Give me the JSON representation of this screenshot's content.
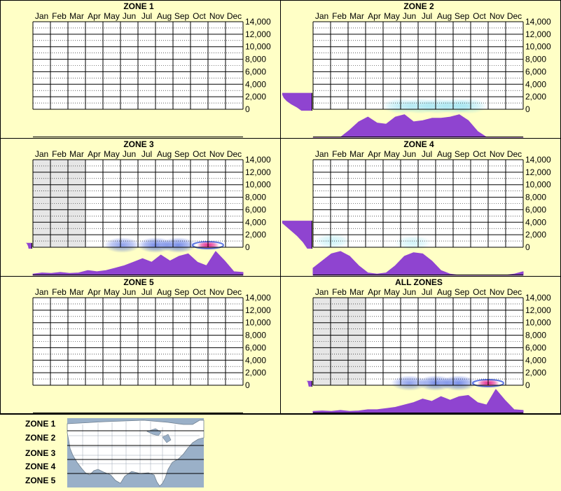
{
  "chart_data": [
    {
      "type": "heatmap",
      "title": "ZONE 1",
      "months": [
        "Jan",
        "Feb",
        "Mar",
        "Apr",
        "May",
        "Jun",
        "Jul",
        "Aug",
        "Sep",
        "Oct",
        "Nov",
        "Dec"
      ],
      "y_ticks": [
        "14,000",
        "12,000",
        "10,000",
        "8,000",
        "6,000",
        "4,000",
        "2,000",
        "0"
      ],
      "ylim": [
        0,
        14000
      ],
      "shaded_months": [],
      "elevation_hist": [],
      "month_profile": [],
      "heat": []
    },
    {
      "type": "heatmap",
      "title": "ZONE 2",
      "months": [
        "Jan",
        "Feb",
        "Mar",
        "Apr",
        "May",
        "Jun",
        "Jul",
        "Aug",
        "Sep",
        "Oct",
        "Nov",
        "Dec"
      ],
      "y_ticks": [
        "14,000",
        "12,000",
        "10,000",
        "8,000",
        "6,000",
        "4,000",
        "2,000",
        "0"
      ],
      "ylim": [
        0,
        14000
      ],
      "shaded_months": [],
      "elevation_hist": [
        [
          0,
          0.35
        ],
        [
          500,
          0.5
        ],
        [
          1000,
          0.7
        ],
        [
          1500,
          0.85
        ],
        [
          2000,
          0.95
        ],
        [
          2500,
          1.0
        ],
        [
          2800,
          1.0
        ]
      ],
      "month_profile": [
        0,
        0,
        0,
        0,
        0.3,
        0.65,
        0.85,
        0.6,
        0.55,
        0.85,
        0.95,
        0.65,
        0.7,
        0.8,
        0.8,
        0.85,
        0.95,
        0.7,
        0.25,
        0,
        0,
        0,
        0,
        0
      ],
      "heat": [
        {
          "month": 5.5,
          "elev": 500,
          "intensity": 0.45,
          "color": "#6fd6e8"
        },
        {
          "month": 6.6,
          "elev": 500,
          "intensity": 0.5,
          "color": "#6fd6e8"
        },
        {
          "month": 7.6,
          "elev": 500,
          "intensity": 0.5,
          "color": "#6fd6e8"
        },
        {
          "month": 8.6,
          "elev": 500,
          "intensity": 0.5,
          "color": "#6fd6e8"
        },
        {
          "month": 9.4,
          "elev": 500,
          "intensity": 0.45,
          "color": "#6fd6e8"
        }
      ]
    },
    {
      "type": "heatmap",
      "title": "ZONE 3",
      "months": [
        "Jan",
        "Feb",
        "Mar",
        "Apr",
        "May",
        "Jun",
        "Jul",
        "Aug",
        "Sep",
        "Oct",
        "Nov",
        "Dec"
      ],
      "y_ticks": [
        "14,000",
        "12,000",
        "10,000",
        "8,000",
        "6,000",
        "4,000",
        "2,000",
        "0"
      ],
      "ylim": [
        0,
        14000
      ],
      "shaded_months": [
        "Jan",
        "Feb",
        "Mar"
      ],
      "elevation_hist": [
        [
          0,
          0.1
        ],
        [
          400,
          0.12
        ],
        [
          800,
          0.16
        ],
        [
          900,
          0.2
        ]
      ],
      "month_profile": [
        0.05,
        0.1,
        0.08,
        0.12,
        0.08,
        0.1,
        0.2,
        0.15,
        0.2,
        0.3,
        0.4,
        0.55,
        0.7,
        0.55,
        0.85,
        0.6,
        0.8,
        0.9,
        0.55,
        0.4,
        1.0,
        0.6,
        0.15,
        0.12
      ],
      "heat": [
        {
          "month": 5.6,
          "elev": 200,
          "intensity": 0.5,
          "color": "#1a3fd6"
        },
        {
          "month": 7.5,
          "elev": 200,
          "intensity": 0.6,
          "color": "#1a3fd6"
        },
        {
          "month": 8.8,
          "elev": 200,
          "intensity": 0.6,
          "color": "#1a3fd6"
        },
        {
          "month": 10.5,
          "elev": 200,
          "intensity": 1.0,
          "color": "#e0208a"
        }
      ]
    },
    {
      "type": "heatmap",
      "title": "ZONE 4",
      "months": [
        "Jan",
        "Feb",
        "Mar",
        "Apr",
        "May",
        "Jun",
        "Jul",
        "Aug",
        "Sep",
        "Oct",
        "Nov",
        "Dec"
      ],
      "y_ticks": [
        "14,000",
        "12,000",
        "10,000",
        "8,000",
        "6,000",
        "4,000",
        "2,000",
        "0"
      ],
      "ylim": [
        0,
        14000
      ],
      "shaded_months": [],
      "elevation_hist": [
        [
          0,
          0.15
        ],
        [
          1000,
          0.3
        ],
        [
          2000,
          0.5
        ],
        [
          3000,
          0.75
        ],
        [
          4000,
          1.0
        ],
        [
          4400,
          1.0
        ]
      ],
      "month_profile": [
        0.3,
        0.6,
        0.9,
        1.0,
        0.8,
        0.4,
        0.1,
        0.05,
        0.1,
        0.4,
        0.8,
        0.95,
        0.9,
        0.6,
        0.2,
        0.05,
        0,
        0,
        0,
        0,
        0,
        0,
        0.05,
        0.15
      ],
      "heat": [
        {
          "month": 1.6,
          "elev": 1000,
          "intensity": 0.45,
          "color": "#8fe3ee"
        },
        {
          "month": 6.2,
          "elev": 700,
          "intensity": 0.4,
          "color": "#8fe3ee"
        }
      ]
    },
    {
      "type": "heatmap",
      "title": "ZONE 5",
      "months": [
        "Jan",
        "Feb",
        "Mar",
        "Apr",
        "May",
        "Jun",
        "Jul",
        "Aug",
        "Sep",
        "Oct",
        "Nov",
        "Dec"
      ],
      "y_ticks": [
        "14,000",
        "12,000",
        "10,000",
        "8,000",
        "6,000",
        "4,000",
        "2,000",
        "0"
      ],
      "ylim": [
        0,
        14000
      ],
      "shaded_months": [],
      "elevation_hist": [],
      "month_profile": [],
      "heat": []
    },
    {
      "type": "heatmap",
      "title": "ALL ZONES",
      "months": [
        "Jan",
        "Feb",
        "Mar",
        "Apr",
        "May",
        "Jun",
        "Jul",
        "Aug",
        "Sep",
        "Oct",
        "Nov",
        "Dec"
      ],
      "y_ticks": [
        "14,000",
        "12,000",
        "10,000",
        "8,000",
        "6,000",
        "4,000",
        "2,000",
        "0"
      ],
      "ylim": [
        0,
        14000
      ],
      "shaded_months": [
        "Jan",
        "Feb",
        "Mar"
      ],
      "elevation_hist": [
        [
          0,
          0.1
        ],
        [
          400,
          0.12
        ],
        [
          800,
          0.14
        ],
        [
          900,
          0.18
        ]
      ],
      "month_profile": [
        0.08,
        0.1,
        0.08,
        0.12,
        0.08,
        0.1,
        0.15,
        0.15,
        0.2,
        0.25,
        0.35,
        0.45,
        0.6,
        0.5,
        0.7,
        0.55,
        0.7,
        0.75,
        0.45,
        0.35,
        1.0,
        0.55,
        0.15,
        0.12
      ],
      "heat": [
        {
          "month": 6.0,
          "elev": 200,
          "intensity": 0.5,
          "color": "#1a3fd6"
        },
        {
          "month": 7.5,
          "elev": 200,
          "intensity": 0.6,
          "color": "#1a3fd6"
        },
        {
          "month": 8.8,
          "elev": 200,
          "intensity": 0.6,
          "color": "#1a3fd6"
        },
        {
          "month": 10.5,
          "elev": 200,
          "intensity": 1.0,
          "color": "#e0208a"
        }
      ]
    }
  ],
  "legend": {
    "zones": [
      "ZONE 1",
      "ZONE 2",
      "ZONE 3",
      "ZONE 4",
      "ZONE 5"
    ],
    "map": "north-america-zone-map"
  },
  "colors": {
    "background": "#ffffc6",
    "histogram": "#8f44d0",
    "shaded_month": "#e6e6e6",
    "map_water": "#9ab0c8",
    "map_land": "#ffffff"
  }
}
